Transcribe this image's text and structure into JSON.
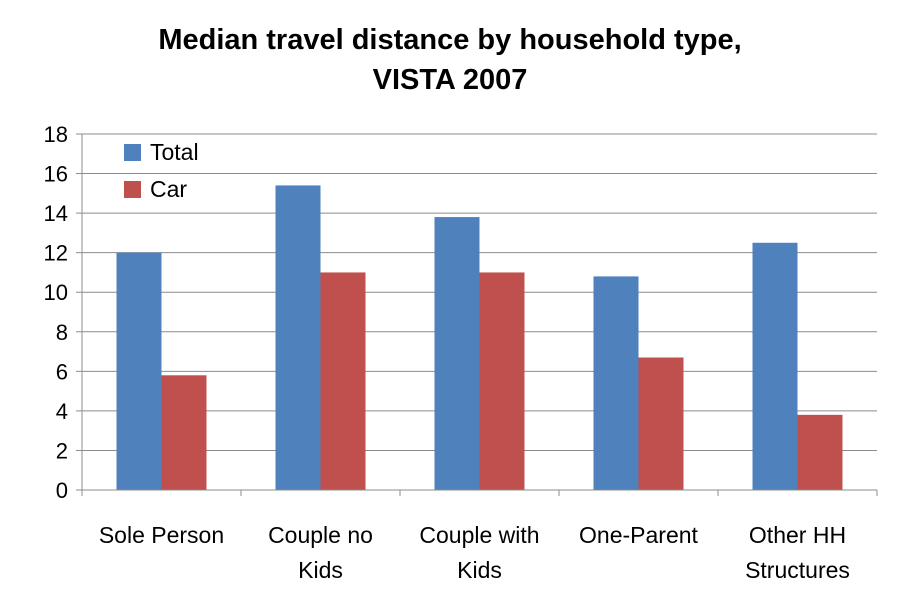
{
  "chart_data": {
    "type": "bar",
    "title_lines": [
      "Median travel distance by household type,",
      "VISTA 2007"
    ],
    "categories": [
      [
        "Sole Person"
      ],
      [
        "Couple no",
        "Kids"
      ],
      [
        "Couple with",
        "Kids"
      ],
      [
        "One-Parent"
      ],
      [
        "Other HH",
        "Structures"
      ]
    ],
    "series": [
      {
        "name": "Total",
        "color": "#4F81BD",
        "values": [
          12.0,
          15.4,
          13.8,
          10.8,
          12.5
        ]
      },
      {
        "name": "Car",
        "color": "#C0504D",
        "values": [
          5.8,
          11.0,
          11.0,
          6.7,
          3.8
        ]
      }
    ],
    "ylim": [
      0,
      18
    ],
    "yticks": [
      0,
      2,
      4,
      6,
      8,
      10,
      12,
      14,
      16,
      18
    ],
    "grid": true,
    "legend_position": "top-left",
    "gridline_color": "#8c8c8c"
  }
}
